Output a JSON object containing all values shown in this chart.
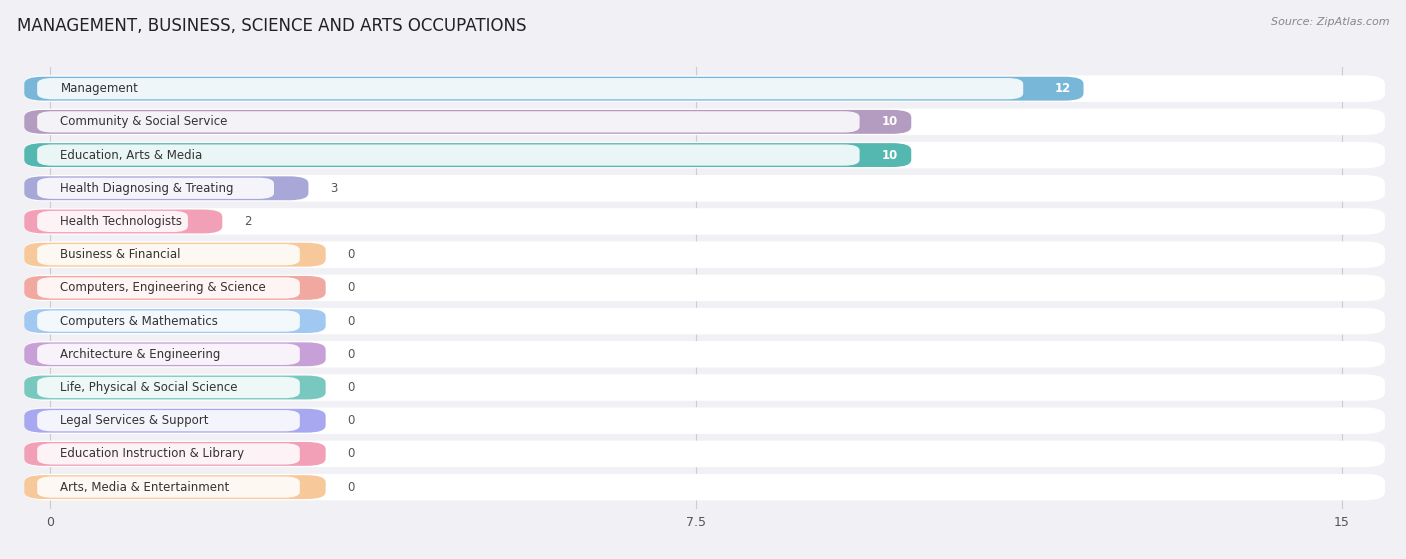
{
  "title": "MANAGEMENT, BUSINESS, SCIENCE AND ARTS OCCUPATIONS",
  "source": "Source: ZipAtlas.com",
  "categories": [
    "Management",
    "Community & Social Service",
    "Education, Arts & Media",
    "Health Diagnosing & Treating",
    "Health Technologists",
    "Business & Financial",
    "Computers, Engineering & Science",
    "Computers & Mathematics",
    "Architecture & Engineering",
    "Life, Physical & Social Science",
    "Legal Services & Support",
    "Education Instruction & Library",
    "Arts, Media & Entertainment"
  ],
  "values": [
    12,
    10,
    10,
    3,
    2,
    0,
    0,
    0,
    0,
    0,
    0,
    0,
    0
  ],
  "bar_colors": [
    "#78b7d8",
    "#b39cc0",
    "#55b8b0",
    "#a8a8d8",
    "#f2a0b8",
    "#f7c99a",
    "#f0a8a0",
    "#a0c8f0",
    "#c8a0d8",
    "#78c8c0",
    "#a8a8f0",
    "#f2a0b8",
    "#f7c99a"
  ],
  "xlim": [
    0,
    15
  ],
  "xticks": [
    0,
    7.5,
    15
  ],
  "background_color": "#f0f0f5",
  "row_bg_color": "#ffffff",
  "title_fontsize": 12,
  "label_fontsize": 8.5,
  "value_fontsize": 8.5,
  "bar_height": 0.72,
  "zero_bar_width": 3.2
}
